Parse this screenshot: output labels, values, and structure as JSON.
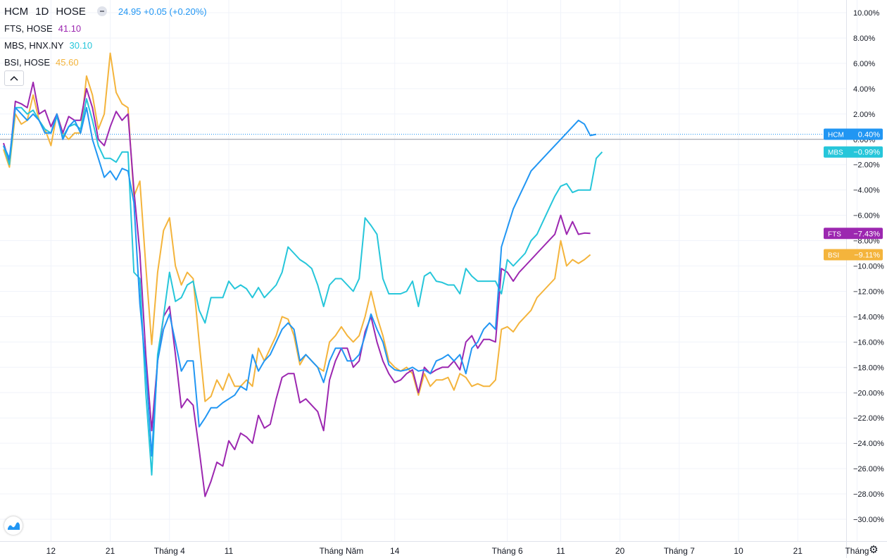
{
  "legend": {
    "main": {
      "symbol": "HCM",
      "interval": "1D",
      "exchange": "HOSE",
      "value": "24.95 +0.05 (+0.20%)",
      "color": "#2196f3"
    },
    "items": [
      {
        "label": "FTS, HOSE",
        "value": "41.10",
        "color": "#9c27b0"
      },
      {
        "label": "MBS, HNX.NY",
        "value": "30.10",
        "color": "#26c6da"
      },
      {
        "label": "BSI, HOSE",
        "value": "45.60",
        "color": "#f4b43c"
      }
    ],
    "collapse_icon": "chevron-up-icon"
  },
  "settings_icon": "gear-icon",
  "logo_icon": "tradingview-logo-icon",
  "chart_data": {
    "type": "line",
    "ylim": [
      -31,
      11
    ],
    "yticks": [
      10,
      8,
      6,
      4,
      2,
      0,
      -2,
      -4,
      -6,
      -8,
      -10,
      -12,
      -14,
      -16,
      -18,
      -20,
      -22,
      -24,
      -26,
      -28,
      -30
    ],
    "ytick_labels": [
      "10.00%",
      "8.00%",
      "6.00%",
      "4.00%",
      "2.00%",
      "0.00%",
      "−2.00%",
      "−4.00%",
      "−6.00%",
      "−8.00%",
      "−10.00%",
      "−12.00%",
      "−14.00%",
      "−16.00%",
      "−18.00%",
      "−20.00%",
      "−22.00%",
      "−24.00%",
      "−26.00%",
      "−28.00%",
      "−30.00%"
    ],
    "xlim": [
      0,
      144
    ],
    "xticks": [
      {
        "x": 8,
        "label": "12"
      },
      {
        "x": 18,
        "label": "21"
      },
      {
        "x": 28,
        "label": "Tháng 4"
      },
      {
        "x": 38,
        "label": "11"
      },
      {
        "x": 57,
        "label": "Tháng Năm"
      },
      {
        "x": 66,
        "label": "14"
      },
      {
        "x": 85,
        "label": "Tháng 6"
      },
      {
        "x": 94,
        "label": "11"
      },
      {
        "x": 104,
        "label": "20"
      },
      {
        "x": 114,
        "label": "Tháng 7"
      },
      {
        "x": 124,
        "label": "10"
      },
      {
        "x": 134,
        "label": "21"
      },
      {
        "x": 144,
        "label": "Tháng"
      }
    ],
    "baseline": 0,
    "grid": true,
    "series": [
      {
        "name": "HCM",
        "color": "#2196f3",
        "last_label": "0.40%",
        "values": [
          -0.5,
          -1.5,
          2.5,
          2.0,
          1.5,
          2.0,
          1.5,
          0.5,
          0.5,
          2.0,
          0.0,
          1.0,
          1.5,
          0.5,
          2.5,
          0.0,
          -1.5,
          -3.0,
          -2.5,
          -3.2,
          -2.3,
          -2.5,
          -5.0,
          -13.0,
          -18.0,
          -25.0,
          -17.5,
          -15.0,
          -13.8,
          -16.0,
          -18.3,
          -17.5,
          -17.5,
          -22.7,
          -22.0,
          -21.2,
          -21.2,
          -20.8,
          -20.5,
          -20.2,
          -19.5,
          -19.8,
          -17.0,
          -18.3,
          -17.5,
          -17.0,
          -16.0,
          -15.0,
          -14.5,
          -15.0,
          -17.5,
          -17.0,
          -17.5,
          -18.0,
          -19.2,
          -17.5,
          -16.5,
          -16.5,
          -17.5,
          -17.5,
          -17.0,
          -15.5,
          -13.8,
          -15.0,
          -16.0,
          -17.8,
          -18.2,
          -18.3,
          -18.2,
          -18.0,
          -18.3,
          -18.2,
          -18.5,
          -17.5,
          -17.3,
          -17.0,
          -17.5,
          -17.0,
          -18.5,
          -16.5,
          -16.0,
          -15.0,
          -14.5,
          -15.0,
          -8.5,
          -7.0,
          -5.5,
          -4.5,
          -3.5,
          -2.5,
          -2.0,
          -1.5,
          -1.0,
          -0.5,
          0.0,
          0.5,
          1.0,
          1.5,
          1.2,
          0.3,
          0.4
        ]
      },
      {
        "name": "MBS",
        "color": "#26c6da",
        "last_label": "−0.99%",
        "values": [
          -0.5,
          -2.0,
          2.5,
          2.5,
          2.0,
          2.3,
          1.5,
          0.8,
          0.5,
          1.8,
          0.2,
          1.0,
          1.2,
          0.8,
          3.2,
          1.5,
          -0.5,
          -1.5,
          -1.5,
          -1.8,
          -1.0,
          -1.0,
          -10.5,
          -11.0,
          -20.0,
          -26.5,
          -17.0,
          -14.0,
          -10.5,
          -12.8,
          -12.5,
          -11.5,
          -11.2,
          -13.5,
          -14.5,
          -12.5,
          -12.5,
          -12.5,
          -11.2,
          -11.8,
          -11.5,
          -11.8,
          -12.5,
          -11.7,
          -12.5,
          -12.0,
          -11.5,
          -10.5,
          -8.5,
          -9.0,
          -9.5,
          -9.8,
          -10.2,
          -11.5,
          -13.2,
          -11.5,
          -11.0,
          -11.0,
          -11.5,
          -12.0,
          -11.0,
          -6.2,
          -6.8,
          -7.5,
          -11.0,
          -12.2,
          -12.2,
          -12.2,
          -12.0,
          -11.2,
          -13.2,
          -10.8,
          -10.5,
          -11.2,
          -11.3,
          -11.5,
          -11.5,
          -12.2,
          -10.2,
          -10.8,
          -11.2,
          -11.2,
          -11.2,
          -11.2,
          -12.2,
          -9.5,
          -10.0,
          -9.5,
          -9.0,
          -8.0,
          -7.5,
          -6.5,
          -5.5,
          -4.5,
          -3.7,
          -3.5,
          -4.2,
          -4.0,
          -4.0,
          -4.0,
          -1.5,
          -1.0
        ]
      },
      {
        "name": "FTS",
        "color": "#9c27b0",
        "last_label": "−7.43%",
        "values": [
          -0.3,
          -1.8,
          3.0,
          2.8,
          2.5,
          4.5,
          2.0,
          2.3,
          1.0,
          2.0,
          0.5,
          1.8,
          1.5,
          1.5,
          4.0,
          2.5,
          0.0,
          -0.5,
          1.0,
          2.2,
          1.5,
          2.0,
          -4.0,
          -9.0,
          -17.0,
          -23.0,
          -17.5,
          -14.0,
          -13.2,
          -17.0,
          -21.2,
          -20.5,
          -21.0,
          -24.5,
          -28.2,
          -27.0,
          -25.5,
          -25.8,
          -23.8,
          -24.5,
          -23.2,
          -23.5,
          -24.0,
          -21.8,
          -22.8,
          -22.5,
          -20.5,
          -18.8,
          -18.5,
          -18.5,
          -20.8,
          -20.5,
          -21.0,
          -21.5,
          -23.0,
          -19.0,
          -17.5,
          -16.5,
          -16.5,
          -18.0,
          -17.5,
          -15.2,
          -14.0,
          -16.0,
          -17.5,
          -18.5,
          -19.2,
          -19.0,
          -18.5,
          -18.2,
          -20.0,
          -18.0,
          -18.5,
          -18.2,
          -18.0,
          -18.0,
          -17.5,
          -18.2,
          -16.0,
          -15.5,
          -16.5,
          -15.8,
          -15.8,
          -16.0,
          -10.2,
          -10.5,
          -11.2,
          -10.5,
          -10.0,
          -9.5,
          -9.0,
          -8.5,
          -8.0,
          -7.5,
          -6.0,
          -7.5,
          -6.5,
          -7.5,
          -7.4,
          -7.43
        ]
      },
      {
        "name": "BSI",
        "color": "#f4b43c",
        "last_label": "−9.11%",
        "values": [
          -0.8,
          -2.2,
          2.0,
          1.2,
          1.5,
          3.5,
          1.5,
          0.8,
          -0.5,
          2.0,
          0.5,
          0.0,
          0.5,
          0.5,
          5.0,
          3.5,
          0.8,
          2.0,
          6.8,
          3.7,
          2.8,
          2.5,
          -4.5,
          -3.3,
          -10.0,
          -16.2,
          -10.5,
          -7.2,
          -6.2,
          -10.0,
          -11.5,
          -10.5,
          -11.0,
          -16.0,
          -20.7,
          -20.3,
          -19.0,
          -19.8,
          -18.5,
          -19.5,
          -19.5,
          -19.0,
          -19.5,
          -16.5,
          -17.5,
          -16.5,
          -15.5,
          -14.0,
          -14.2,
          -15.5,
          -17.8,
          -17.0,
          -17.5,
          -18.0,
          -18.3,
          -16.0,
          -15.5,
          -14.8,
          -15.5,
          -16.0,
          -15.5,
          -14.0,
          -12.0,
          -14.0,
          -15.5,
          -17.5,
          -18.0,
          -18.3,
          -18.0,
          -18.5,
          -20.2,
          -18.5,
          -19.5,
          -19.0,
          -19.0,
          -18.8,
          -19.8,
          -18.5,
          -18.8,
          -19.5,
          -19.3,
          -19.5,
          -19.5,
          -19.0,
          -15.0,
          -14.8,
          -15.2,
          -14.5,
          -14.0,
          -13.5,
          -12.5,
          -12.0,
          -11.5,
          -11.0,
          -8.0,
          -10.0,
          -9.5,
          -9.8,
          -9.5,
          -9.11
        ]
      }
    ],
    "current_line_value": 0.4
  }
}
